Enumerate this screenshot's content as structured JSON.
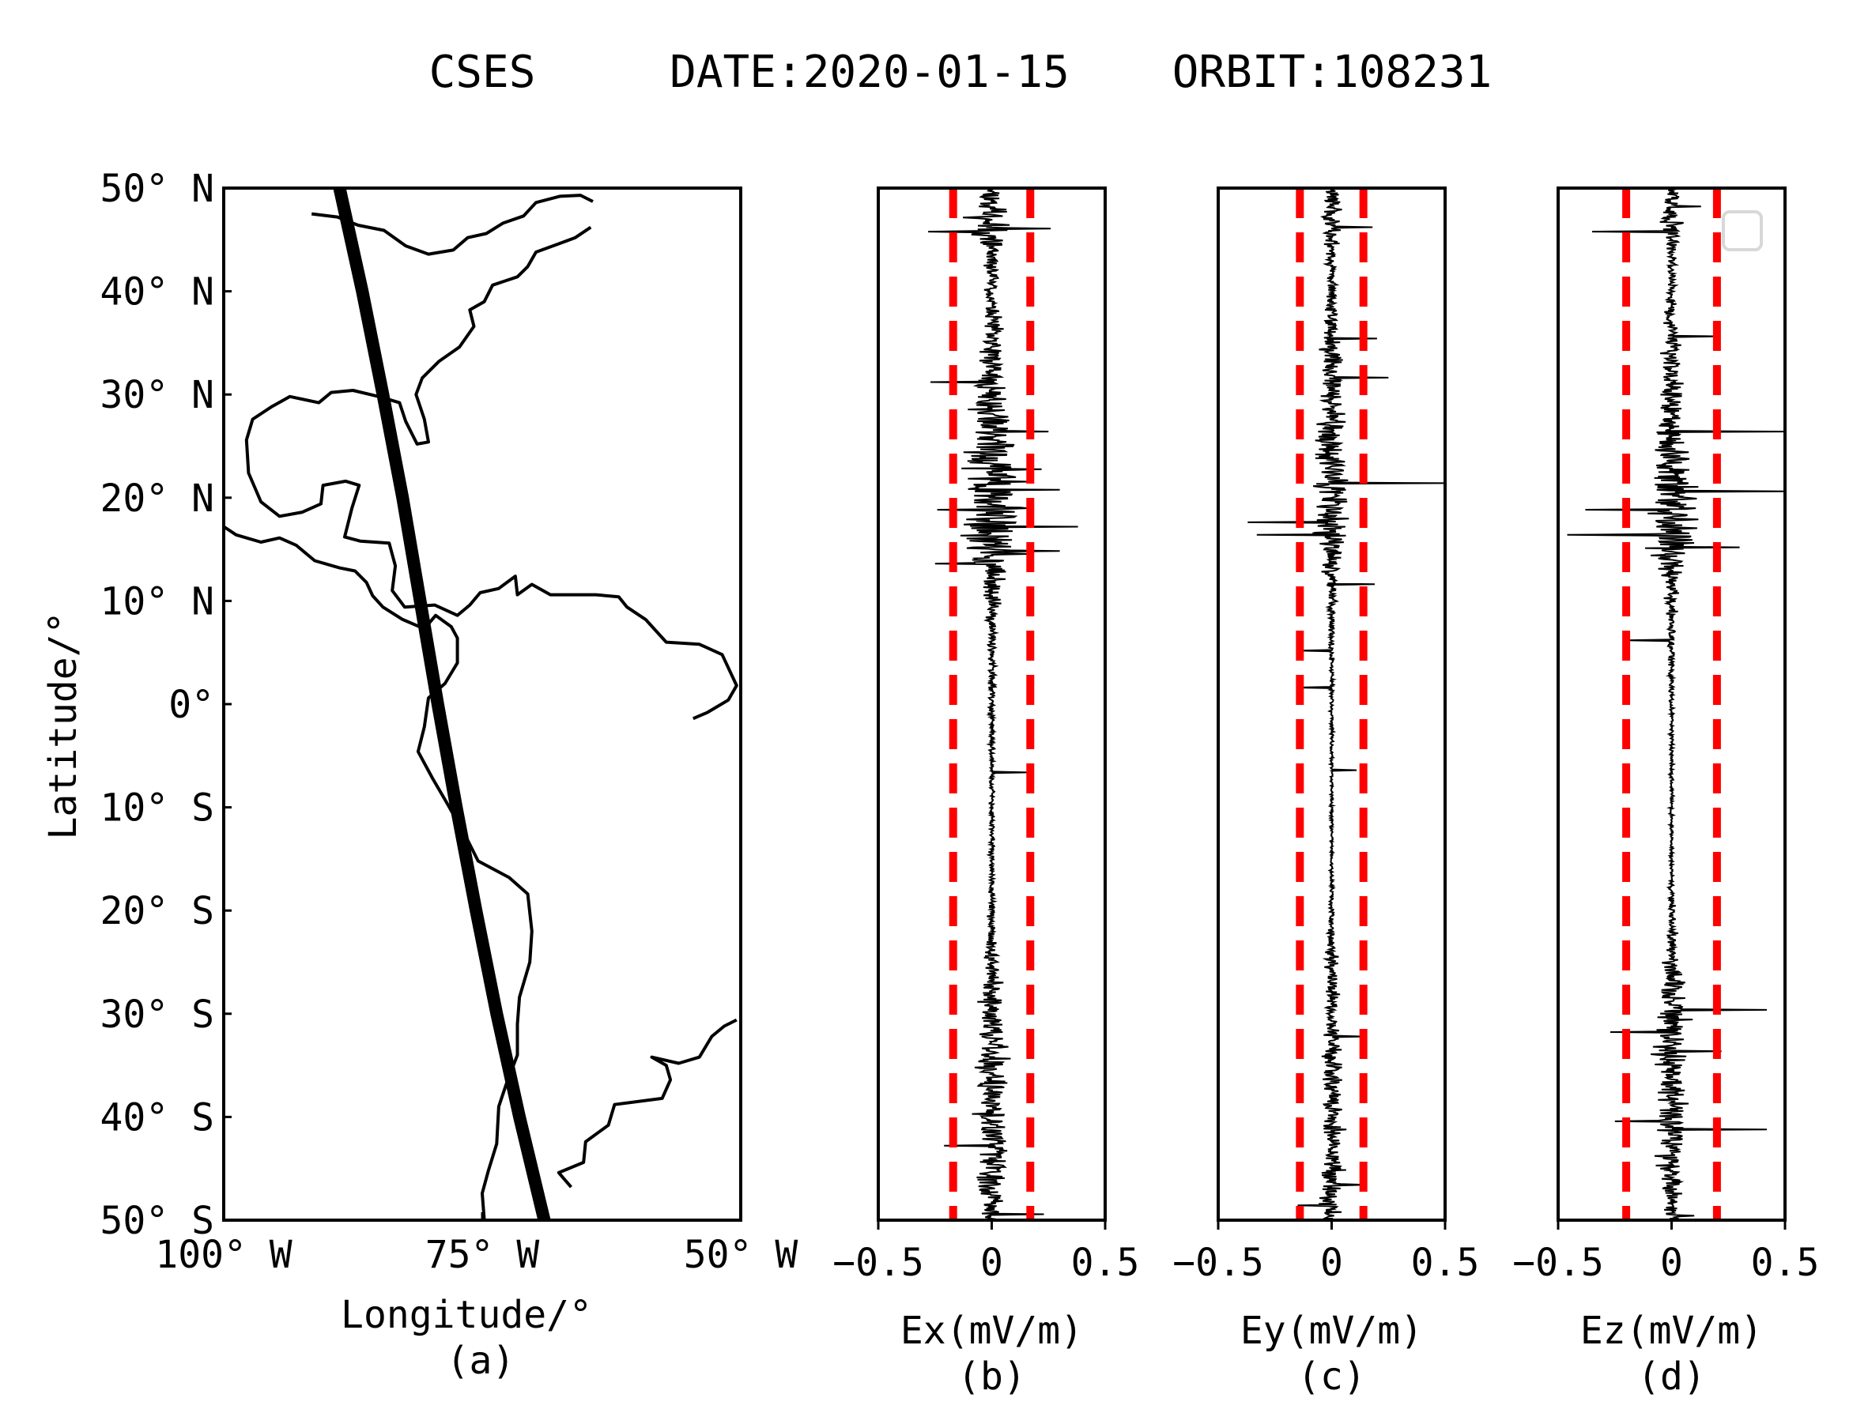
{
  "title": {
    "satellite": "CSES",
    "date": "DATE:2020-01-15",
    "orbit": "ORBIT:108231"
  },
  "colors": {
    "threshold": "#ff0000",
    "trace": "#000000",
    "frame": "#000000",
    "coast": "#000000"
  },
  "chart_data": [
    {
      "id": "a",
      "type": "map",
      "caption": "(a)",
      "xlabel": "Longitude/°",
      "ylabel": "Latitude/°",
      "xlim": [
        -100,
        -50
      ],
      "ylim": [
        -50,
        50
      ],
      "xticks": [
        {
          "value": -100,
          "label": "100° W"
        },
        {
          "value": -75,
          "label": "75° W"
        },
        {
          "value": -50,
          "label": "50° W"
        }
      ],
      "yticks": [
        {
          "value": 50,
          "label": "50° N"
        },
        {
          "value": 40,
          "label": "40° N"
        },
        {
          "value": 30,
          "label": "30° N"
        },
        {
          "value": 20,
          "label": "20° N"
        },
        {
          "value": 10,
          "label": "10° N"
        },
        {
          "value": 0,
          "label": "0°"
        },
        {
          "value": -10,
          "label": "10° S"
        },
        {
          "value": -20,
          "label": "20° S"
        },
        {
          "value": -30,
          "label": "30° S"
        },
        {
          "value": -40,
          "label": "40° S"
        },
        {
          "value": -50,
          "label": "50° S"
        }
      ],
      "orbit_track": [
        [
          -88.8,
          50
        ],
        [
          -86.6,
          40
        ],
        [
          -84.6,
          30
        ],
        [
          -82.7,
          20
        ],
        [
          -81.0,
          10
        ],
        [
          -79.3,
          0
        ],
        [
          -77.5,
          -10
        ],
        [
          -75.6,
          -20
        ],
        [
          -73.6,
          -30
        ],
        [
          -71.4,
          -40
        ],
        [
          -69.0,
          -50
        ]
      ],
      "coastlines": [
        [
          [
            -91.5,
            47.5
          ],
          [
            -89,
            47.2
          ],
          [
            -87,
            46.4
          ],
          [
            -84.5,
            45.9
          ],
          [
            -82.4,
            44.4
          ],
          [
            -80.2,
            43.6
          ],
          [
            -77.8,
            44
          ],
          [
            -76.4,
            45.2
          ],
          [
            -74.6,
            45.6
          ],
          [
            -73,
            46.6
          ],
          [
            -71,
            47.3
          ],
          [
            -69.8,
            48.6
          ],
          [
            -67.5,
            49.2
          ],
          [
            -65.5,
            49.3
          ],
          [
            -64.3,
            48.7
          ]
        ],
        [
          [
            -64.5,
            46.2
          ],
          [
            -66,
            45.2
          ],
          [
            -67.6,
            44.6
          ],
          [
            -69.8,
            43.8
          ],
          [
            -70.6,
            42.4
          ],
          [
            -71.6,
            41.4
          ],
          [
            -74,
            40.6
          ],
          [
            -74.8,
            39
          ],
          [
            -76.2,
            38.2
          ],
          [
            -75.8,
            36.6
          ],
          [
            -77.2,
            34.6
          ],
          [
            -79.2,
            33.2
          ],
          [
            -80.8,
            31.6
          ],
          [
            -81.4,
            30
          ],
          [
            -80.6,
            27.6
          ],
          [
            -80.2,
            25.4
          ],
          [
            -81.3,
            25.2
          ],
          [
            -82.4,
            27.4
          ],
          [
            -83,
            29.2
          ],
          [
            -85,
            29.8
          ],
          [
            -87.5,
            30.4
          ],
          [
            -89.6,
            30.2
          ],
          [
            -90.8,
            29.2
          ],
          [
            -93.6,
            29.8
          ],
          [
            -95.4,
            28.8
          ],
          [
            -97.2,
            27.6
          ],
          [
            -97.8,
            25.6
          ],
          [
            -97.6,
            22.4
          ],
          [
            -96.4,
            19.6
          ],
          [
            -94.6,
            18.2
          ],
          [
            -92.4,
            18.6
          ],
          [
            -90.6,
            19.4
          ],
          [
            -90.4,
            21.2
          ],
          [
            -88.2,
            21.6
          ],
          [
            -86.9,
            21.2
          ],
          [
            -87.6,
            19
          ],
          [
            -88.3,
            16.2
          ],
          [
            -86.8,
            15.8
          ],
          [
            -84,
            15.6
          ],
          [
            -83.4,
            13.4
          ],
          [
            -83.7,
            11
          ],
          [
            -82.5,
            9.4
          ],
          [
            -79.6,
            9.6
          ],
          [
            -77.4,
            8.6
          ],
          [
            -76.2,
            9.6
          ],
          [
            -75.2,
            10.8
          ],
          [
            -73.4,
            11.2
          ],
          [
            -71.8,
            12.4
          ],
          [
            -71.6,
            10.6
          ],
          [
            -70.2,
            11.6
          ],
          [
            -68.4,
            10.6
          ],
          [
            -66.2,
            10.6
          ],
          [
            -64,
            10.6
          ],
          [
            -61.8,
            10.4
          ],
          [
            -61,
            9.4
          ],
          [
            -59.2,
            8.2
          ],
          [
            -57.2,
            6
          ],
          [
            -54,
            5.8
          ],
          [
            -51.8,
            4.8
          ],
          [
            -50.4,
            1.8
          ],
          [
            -51.2,
            0.4
          ],
          [
            -53.2,
            -0.8
          ],
          [
            -54.6,
            -1.4
          ]
        ],
        [
          [
            -100,
            17.2
          ],
          [
            -98.8,
            16.4
          ],
          [
            -96.4,
            15.7
          ],
          [
            -94.6,
            16.1
          ],
          [
            -93,
            15.4
          ],
          [
            -91.2,
            13.9
          ],
          [
            -88.8,
            13.2
          ],
          [
            -87.3,
            12.9
          ],
          [
            -86.2,
            11.8
          ],
          [
            -85.6,
            10.5
          ],
          [
            -84.6,
            9.4
          ],
          [
            -82.7,
            8.2
          ],
          [
            -80.6,
            7.3
          ],
          [
            -79.5,
            8.6
          ],
          [
            -78,
            7.5
          ],
          [
            -77.4,
            6.4
          ],
          [
            -77.4,
            4
          ],
          [
            -78.6,
            2
          ],
          [
            -80.2,
            0.6
          ],
          [
            -80.6,
            -2.2
          ],
          [
            -81.2,
            -4.6
          ],
          [
            -79.8,
            -7.2
          ],
          [
            -78.4,
            -9.6
          ],
          [
            -76.4,
            -13.2
          ],
          [
            -75.4,
            -15.2
          ],
          [
            -72.4,
            -16.8
          ],
          [
            -70.6,
            -18.4
          ],
          [
            -70.2,
            -22
          ],
          [
            -70.4,
            -25
          ],
          [
            -71.4,
            -28.4
          ],
          [
            -71.6,
            -31
          ],
          [
            -71.6,
            -34
          ],
          [
            -72.6,
            -36.6
          ],
          [
            -73.4,
            -39
          ],
          [
            -73.6,
            -42.6
          ],
          [
            -74.4,
            -45.2
          ],
          [
            -75,
            -47.4
          ],
          [
            -74.8,
            -50
          ]
        ],
        [
          [
            -66.4,
            -46.8
          ],
          [
            -67.6,
            -45.4
          ],
          [
            -65.2,
            -44.4
          ],
          [
            -65,
            -42.4
          ],
          [
            -62.8,
            -40.8
          ],
          [
            -62.2,
            -38.8
          ],
          [
            -57.6,
            -38.2
          ],
          [
            -56.8,
            -36.4
          ],
          [
            -57.2,
            -35
          ],
          [
            -58.6,
            -34.2
          ],
          [
            -56,
            -34.8
          ],
          [
            -54,
            -34.2
          ],
          [
            -52.8,
            -32.2
          ],
          [
            -51.6,
            -31.2
          ],
          [
            -50.4,
            -30.6
          ]
        ]
      ]
    },
    {
      "id": "b",
      "type": "line",
      "caption": "(b)",
      "xlabel": "Ex(mV/m)",
      "xlim": [
        -0.5,
        0.5
      ],
      "ylim": [
        -50,
        50
      ],
      "xticks": [
        {
          "value": -0.5,
          "label": "−0.5"
        },
        {
          "value": 0,
          "label": "0"
        },
        {
          "value": 0.5,
          "label": "0.5"
        }
      ],
      "thresholds": [
        -0.17,
        0.17
      ],
      "envelope": [
        [
          50,
          0.05
        ],
        [
          48,
          0.12
        ],
        [
          46,
          0.16
        ],
        [
          44,
          0.05
        ],
        [
          40,
          0.04
        ],
        [
          36,
          0.06
        ],
        [
          32,
          0.1
        ],
        [
          28,
          0.12
        ],
        [
          24,
          0.16
        ],
        [
          20,
          0.22
        ],
        [
          16,
          0.2
        ],
        [
          14,
          0.15
        ],
        [
          12,
          0.07
        ],
        [
          8,
          0.04
        ],
        [
          4,
          0.025
        ],
        [
          0,
          0.02
        ],
        [
          -4,
          0.015
        ],
        [
          -10,
          0.015
        ],
        [
          -16,
          0.015
        ],
        [
          -22,
          0.025
        ],
        [
          -26,
          0.05
        ],
        [
          -30,
          0.08
        ],
        [
          -34,
          0.1
        ],
        [
          -38,
          0.1
        ],
        [
          -42,
          0.1
        ],
        [
          -46,
          0.1
        ],
        [
          -50,
          0.06
        ]
      ],
      "spikes": [
        {
          "lat": 46.1,
          "dev": 0.26
        },
        {
          "lat": 45.8,
          "dev": -0.28
        },
        {
          "lat": 31.2,
          "dev": -0.27
        },
        {
          "lat": 26.4,
          "dev": 0.25
        },
        {
          "lat": 22.8,
          "dev": 0.22
        },
        {
          "lat": 20.8,
          "dev": 0.3
        },
        {
          "lat": 18.8,
          "dev": -0.24
        },
        {
          "lat": 17.2,
          "dev": 0.38
        },
        {
          "lat": 14.8,
          "dev": 0.3
        },
        {
          "lat": 13.6,
          "dev": -0.25
        },
        {
          "lat": -6.6,
          "dev": 0.16
        },
        {
          "lat": -42.8,
          "dev": -0.21
        },
        {
          "lat": -49.4,
          "dev": 0.23
        }
      ]
    },
    {
      "id": "c",
      "type": "line",
      "caption": "(c)",
      "xlabel": "Ey(mV/m)",
      "xlim": [
        -0.5,
        0.5
      ],
      "ylim": [
        -50,
        50
      ],
      "xticks": [
        {
          "value": -0.5,
          "label": "−0.5"
        },
        {
          "value": 0,
          "label": "0"
        },
        {
          "value": 0.5,
          "label": "0.5"
        }
      ],
      "thresholds": [
        -0.14,
        0.14
      ],
      "envelope": [
        [
          50,
          0.03
        ],
        [
          48,
          0.06
        ],
        [
          46,
          0.08
        ],
        [
          44,
          0.03
        ],
        [
          40,
          0.03
        ],
        [
          36,
          0.05
        ],
        [
          32,
          0.07
        ],
        [
          28,
          0.08
        ],
        [
          24,
          0.1
        ],
        [
          20,
          0.12
        ],
        [
          16,
          0.12
        ],
        [
          14,
          0.06
        ],
        [
          12,
          0.04
        ],
        [
          8,
          0.02
        ],
        [
          4,
          0.015
        ],
        [
          0,
          0.012
        ],
        [
          -4,
          0.01
        ],
        [
          -10,
          0.01
        ],
        [
          -16,
          0.01
        ],
        [
          -22,
          0.02
        ],
        [
          -26,
          0.04
        ],
        [
          -30,
          0.05
        ],
        [
          -34,
          0.05
        ],
        [
          -38,
          0.06
        ],
        [
          -42,
          0.07
        ],
        [
          -46,
          0.08
        ],
        [
          -50,
          0.05
        ]
      ],
      "spikes": [
        {
          "lat": 46.2,
          "dev": 0.18
        },
        {
          "lat": 35.4,
          "dev": 0.2
        },
        {
          "lat": 31.6,
          "dev": 0.25
        },
        {
          "lat": 21.4,
          "dev": 0.5
        },
        {
          "lat": 17.6,
          "dev": -0.37
        },
        {
          "lat": 16.4,
          "dev": -0.33
        },
        {
          "lat": 11.6,
          "dev": 0.19
        },
        {
          "lat": 5.2,
          "dev": -0.15
        },
        {
          "lat": 1.6,
          "dev": -0.15
        },
        {
          "lat": -6.4,
          "dev": 0.11
        },
        {
          "lat": -32.2,
          "dev": 0.14
        },
        {
          "lat": -46.6,
          "dev": 0.15
        },
        {
          "lat": -48.6,
          "dev": -0.15
        }
      ]
    },
    {
      "id": "d",
      "type": "line",
      "caption": "(d)",
      "xlabel": "Ez(mV/m)",
      "xlim": [
        -0.5,
        0.5
      ],
      "ylim": [
        -50,
        50
      ],
      "xticks": [
        {
          "value": -0.5,
          "label": "−0.5"
        },
        {
          "value": 0,
          "label": "0"
        },
        {
          "value": 0.5,
          "label": "0.5"
        }
      ],
      "thresholds": [
        -0.2,
        0.2
      ],
      "envelope": [
        [
          50,
          0.04
        ],
        [
          48,
          0.06
        ],
        [
          46,
          0.08
        ],
        [
          44,
          0.03
        ],
        [
          40,
          0.03
        ],
        [
          36,
          0.05
        ],
        [
          32,
          0.06
        ],
        [
          28,
          0.08
        ],
        [
          24,
          0.12
        ],
        [
          20,
          0.16
        ],
        [
          16,
          0.18
        ],
        [
          14,
          0.1
        ],
        [
          12,
          0.05
        ],
        [
          8,
          0.025
        ],
        [
          4,
          0.02
        ],
        [
          0,
          0.015
        ],
        [
          -4,
          0.012
        ],
        [
          -10,
          0.01
        ],
        [
          -16,
          0.01
        ],
        [
          -22,
          0.03
        ],
        [
          -26,
          0.06
        ],
        [
          -30,
          0.1
        ],
        [
          -34,
          0.1
        ],
        [
          -38,
          0.09
        ],
        [
          -42,
          0.09
        ],
        [
          -46,
          0.07
        ],
        [
          -50,
          0.04
        ]
      ],
      "spikes": [
        {
          "lat": 48.2,
          "dev": 0.13
        },
        {
          "lat": 45.8,
          "dev": -0.35
        },
        {
          "lat": 35.6,
          "dev": 0.2
        },
        {
          "lat": 26.4,
          "dev": 0.5
        },
        {
          "lat": 20.6,
          "dev": 0.5
        },
        {
          "lat": 18.8,
          "dev": -0.38
        },
        {
          "lat": 16.4,
          "dev": -0.46
        },
        {
          "lat": 15.2,
          "dev": 0.3
        },
        {
          "lat": 6.2,
          "dev": -0.2
        },
        {
          "lat": -29.6,
          "dev": 0.42
        },
        {
          "lat": -31.8,
          "dev": -0.27
        },
        {
          "lat": -33.6,
          "dev": 0.22
        },
        {
          "lat": -40.4,
          "dev": -0.25
        },
        {
          "lat": -41.2,
          "dev": 0.42
        },
        {
          "lat": -49.6,
          "dev": 0.1
        }
      ]
    }
  ]
}
